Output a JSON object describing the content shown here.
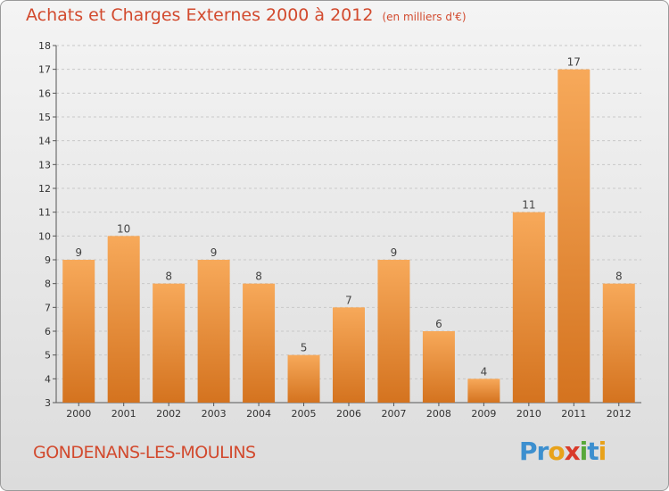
{
  "title": {
    "main": "Achats et Charges Externes 2000 à 2012",
    "unit": "(en milliers d'€)"
  },
  "commune": "GONDENANS-LES-MOULINS",
  "logo": {
    "text": "Proxiti",
    "letters": [
      {
        "char": "P",
        "color": "#3c8fcf"
      },
      {
        "char": "r",
        "color": "#3c8fcf"
      },
      {
        "char": "o",
        "color": "#e8a21a"
      },
      {
        "char": "x",
        "color": "#d93a2a"
      },
      {
        "char": "i",
        "color": "#58a83a"
      },
      {
        "char": "t",
        "color": "#3c8fcf"
      },
      {
        "char": "i",
        "color": "#e8a21a"
      }
    ]
  },
  "colors": {
    "bar_light": "#f7a95a",
    "bar_dark": "#d4731f",
    "text_accent": "#d24a2e"
  },
  "chart_data": {
    "type": "bar",
    "categories": [
      "2000",
      "2001",
      "2002",
      "2003",
      "2004",
      "2005",
      "2006",
      "2007",
      "2008",
      "2009",
      "2010",
      "2011",
      "2012"
    ],
    "values": [
      9,
      10,
      8,
      9,
      8,
      5,
      7,
      9,
      6,
      4,
      11,
      17,
      8
    ],
    "ylim": [
      3,
      18
    ],
    "yticks": [
      3,
      4,
      5,
      6,
      7,
      8,
      9,
      10,
      11,
      12,
      13,
      14,
      15,
      16,
      17,
      18
    ],
    "grid": true
  }
}
